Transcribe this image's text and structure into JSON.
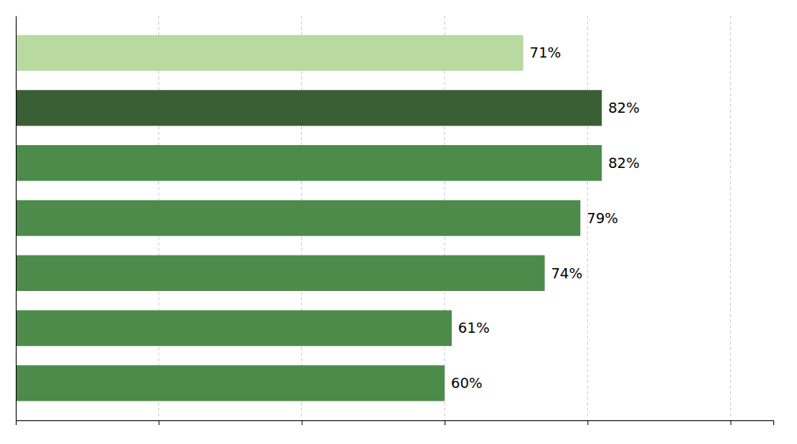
{
  "chart_data": {
    "type": "bar",
    "orientation": "horizontal",
    "categories": [
      null,
      null,
      null,
      null,
      null,
      null,
      null
    ],
    "values": [
      71,
      82,
      82,
      79,
      74,
      61,
      60
    ],
    "value_labels": [
      "71%",
      "82%",
      "82%",
      "79%",
      "74%",
      "61%",
      "60%"
    ],
    "colors": [
      "#b8d9a0",
      "#3a5e35",
      "#4d8b4a",
      "#4d8b4a",
      "#4d8b4a",
      "#4d8b4a",
      "#4d8b4a"
    ],
    "xlim": [
      0,
      106
    ],
    "xticks": [
      20,
      40,
      60,
      80,
      100
    ],
    "grid": true,
    "tick_labels": false,
    "data_labels": true
  }
}
